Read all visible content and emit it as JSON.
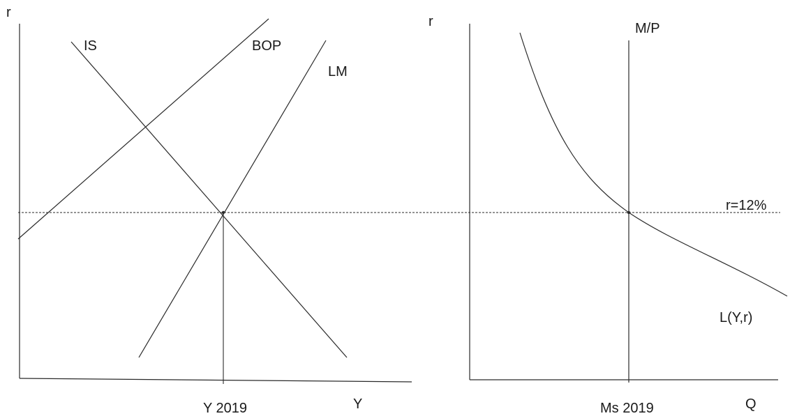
{
  "left_panel": {
    "y_axis_label": "r",
    "x_axis_label": "Y",
    "curves": {
      "is_label": "IS",
      "bop_label": "BOP",
      "lm_label": "LM"
    },
    "equilibrium_label": "Y 2019"
  },
  "right_panel": {
    "y_axis_label": "r",
    "x_axis_label": "Q",
    "money_supply_label": "M/P",
    "money_demand_label": "L(Y,r)",
    "equilibrium_label": "Ms 2019"
  },
  "interest_rate_label": "r=12%"
}
